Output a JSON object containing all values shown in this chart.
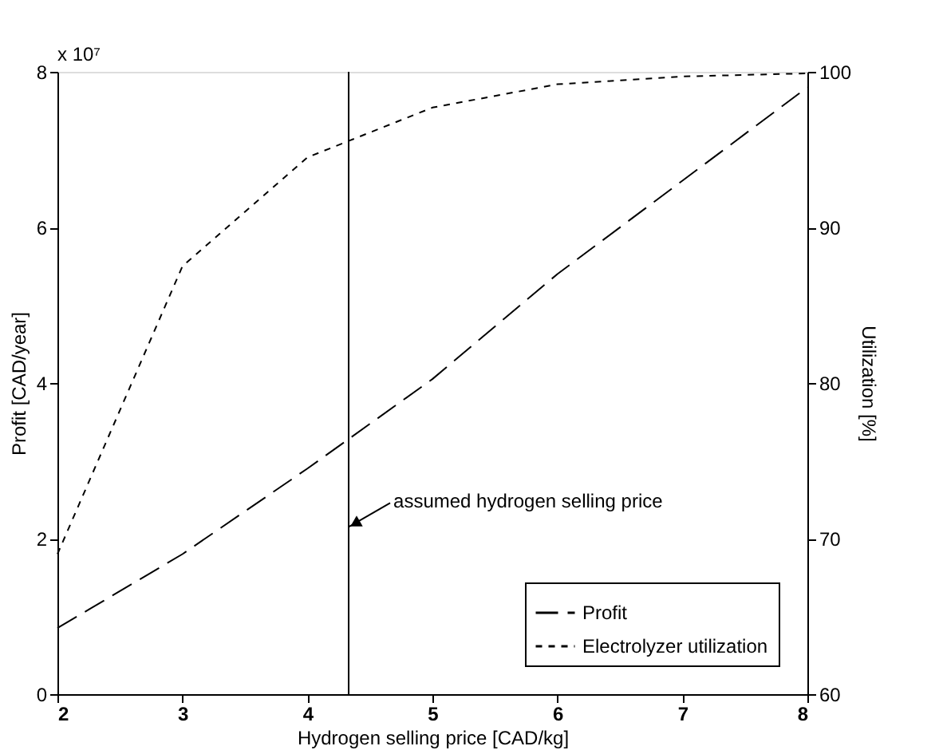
{
  "chart_data": {
    "type": "line",
    "xlabel": "Hydrogen selling price [CAD/kg]",
    "ylabel": "Profit [CAD/year]",
    "y2label": "Utilization [%]",
    "x": [
      2,
      3,
      4,
      5,
      6,
      7,
      8
    ],
    "series": [
      {
        "name": "Profit",
        "color": "#000000",
        "line_style": "dashed",
        "values": [
          0.85,
          1.8,
          2.9,
          4.05,
          5.4,
          6.6,
          7.8
        ]
      },
      {
        "name": "Electrolyzer utilization",
        "color": "#000000",
        "line_style": "dotted",
        "axis": "y2",
        "values": [
          69.0,
          87.5,
          94.5,
          97.7,
          99.2,
          99.7,
          99.9
        ]
      }
    ],
    "xlim": [
      2,
      8
    ],
    "xticks": [
      2,
      3,
      4,
      5,
      6,
      7,
      8
    ],
    "ylim": [
      0,
      8
    ],
    "yticks": [
      0,
      2,
      4,
      6,
      8
    ],
    "y2lim": [
      60,
      100
    ],
    "y2ticks": [
      60,
      70,
      80,
      90,
      100
    ],
    "ref_lines": [
      {
        "axis": "x",
        "value": 4.33,
        "color": "#000000"
      }
    ],
    "annotations": [
      "x 10⁷",
      {
        "text": "assumed hydrogen selling price",
        "x": 4.33,
        "y": 2.15
      }
    ],
    "grid": false,
    "legend": "bottom right",
    "marker": "none"
  }
}
